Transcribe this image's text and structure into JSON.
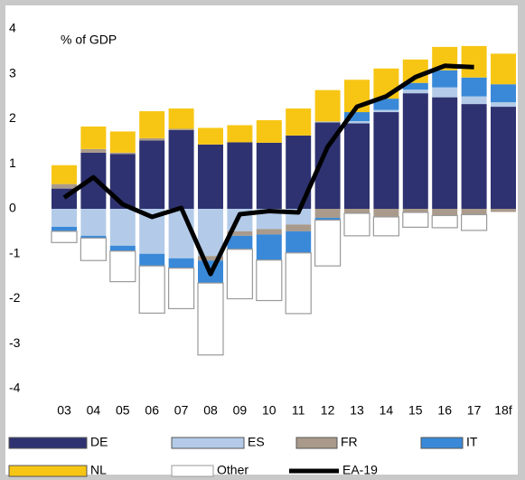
{
  "chart_data": {
    "type": "bar",
    "stacked": true,
    "y_label": "% of GDP",
    "categories": [
      "03",
      "04",
      "05",
      "06",
      "07",
      "08",
      "09",
      "10",
      "11",
      "12",
      "13",
      "14",
      "15",
      "16",
      "17",
      "18f"
    ],
    "ylim": [
      -4,
      4
    ],
    "yticks": [
      -4,
      -3,
      -2,
      -1,
      0,
      1,
      2,
      3,
      4
    ],
    "grid": false,
    "series": [
      {
        "name": "DE",
        "color": "#2e3270",
        "values": [
          0.45,
          1.25,
          1.22,
          1.52,
          1.75,
          1.43,
          1.48,
          1.47,
          1.63,
          1.92,
          1.9,
          2.15,
          2.57,
          2.48,
          2.33,
          2.27
        ]
      },
      {
        "name": "ES",
        "color": "#b3cbe8",
        "values": [
          -0.4,
          -0.6,
          -0.82,
          -1.0,
          -1.1,
          -1.05,
          -0.5,
          -0.45,
          -0.35,
          0.02,
          0.05,
          0.05,
          0.08,
          0.22,
          0.17,
          0.1
        ]
      },
      {
        "name": "FR",
        "color": "#a99a8b",
        "values": [
          0.1,
          0.08,
          0.03,
          0.05,
          0.03,
          -0.1,
          -0.1,
          -0.12,
          -0.15,
          -0.2,
          -0.1,
          -0.18,
          -0.08,
          -0.15,
          -0.13,
          -0.07
        ]
      },
      {
        "name": "IT",
        "color": "#3a89d8",
        "values": [
          -0.1,
          -0.05,
          -0.12,
          -0.27,
          -0.22,
          -0.5,
          -0.3,
          -0.57,
          -0.48,
          -0.05,
          0.2,
          0.25,
          0.15,
          0.38,
          0.42,
          0.4
        ]
      },
      {
        "name": "NL",
        "color": "#f7c614",
        "values": [
          0.42,
          0.5,
          0.47,
          0.6,
          0.45,
          0.37,
          0.38,
          0.5,
          0.6,
          0.7,
          0.72,
          0.67,
          0.52,
          0.52,
          0.7,
          0.68
        ]
      },
      {
        "name": "Other",
        "color": "#ffffff",
        "stroke": "#9a9a9a",
        "values": [
          -0.25,
          -0.5,
          -0.68,
          -1.05,
          -0.9,
          -1.6,
          -1.1,
          -0.9,
          -1.35,
          -1.02,
          -0.5,
          -0.42,
          -0.33,
          -0.27,
          -0.35,
          0
        ]
      },
      {
        "name": "EA-19",
        "type": "line",
        "color": "#000000",
        "values": [
          0.25,
          0.7,
          0.1,
          -0.18,
          0.02,
          -1.45,
          -0.12,
          -0.05,
          -0.08,
          1.38,
          2.27,
          2.5,
          2.93,
          3.18,
          3.15,
          null
        ]
      }
    ]
  }
}
